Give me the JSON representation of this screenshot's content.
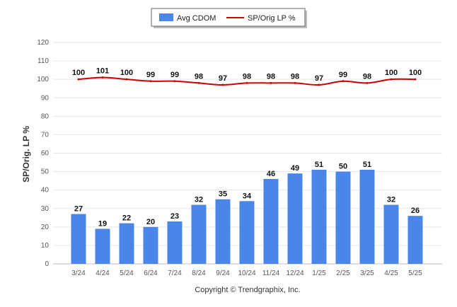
{
  "chart_data": {
    "type": "bar",
    "categories": [
      "3/24",
      "4/24",
      "5/24",
      "6/24",
      "7/24",
      "8/24",
      "9/24",
      "10/24",
      "11/24",
      "12/24",
      "1/25",
      "2/25",
      "3/25",
      "4/25",
      "5/25"
    ],
    "series": [
      {
        "name": "Avg CDOM",
        "type": "bar",
        "color": "#4a86e8",
        "values": [
          27,
          19,
          22,
          20,
          23,
          32,
          35,
          34,
          46,
          49,
          51,
          50,
          51,
          32,
          26
        ]
      },
      {
        "name": "SP/Orig LP %",
        "type": "line",
        "color": "#cc0000",
        "values": [
          100,
          101,
          100,
          99,
          99,
          98,
          97,
          98,
          98,
          98,
          97,
          99,
          98,
          100,
          100
        ]
      }
    ],
    "ylabel": "SP/Orig. LP %",
    "ylim": [
      0,
      120
    ],
    "yticks": [
      0,
      10,
      20,
      30,
      40,
      50,
      60,
      70,
      80,
      90,
      100,
      110,
      120
    ],
    "grid": true,
    "legend": "top-center"
  },
  "footer": {
    "copyright": "Copyright © Trendgraphix, Inc."
  }
}
